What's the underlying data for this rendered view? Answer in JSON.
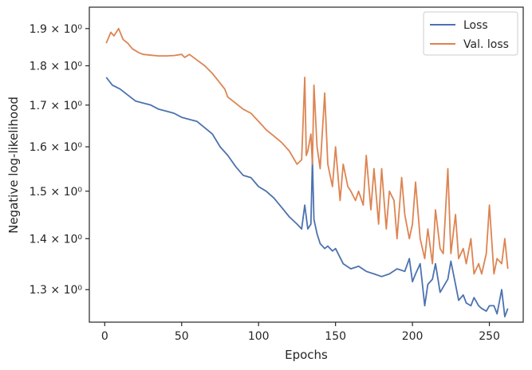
{
  "chart_data": {
    "type": "line",
    "xlabel": "Epochs",
    "ylabel": "Negative log-likelihood",
    "xlim": [
      -10,
      272
    ],
    "ylim": [
      1.24,
      1.96
    ],
    "yscale": "log",
    "xticks": [
      0,
      50,
      100,
      150,
      200,
      250
    ],
    "xtick_labels": [
      "0",
      "50",
      "100",
      "150",
      "200",
      "250"
    ],
    "yticks": [
      1.3,
      1.4,
      1.5,
      1.6,
      1.7,
      1.8,
      1.9
    ],
    "ytick_labels": [
      "1.3 × 10⁰",
      "1.4 × 10⁰",
      "1.5 × 10⁰",
      "1.6 × 10⁰",
      "1.7 × 10⁰",
      "1.8 × 10⁰",
      "1.9 × 10⁰"
    ],
    "grid": false,
    "legend_position": "top-right",
    "series": [
      {
        "name": "Loss",
        "color": "#4c72b0",
        "x": [
          1,
          5,
          10,
          15,
          20,
          25,
          30,
          35,
          40,
          45,
          50,
          55,
          60,
          65,
          70,
          75,
          80,
          85,
          90,
          95,
          100,
          105,
          110,
          115,
          120,
          125,
          128,
          130,
          132,
          134,
          135,
          136,
          138,
          140,
          143,
          145,
          148,
          150,
          155,
          160,
          165,
          170,
          175,
          180,
          185,
          190,
          195,
          198,
          200,
          202,
          205,
          208,
          210,
          213,
          215,
          218,
          220,
          223,
          225,
          228,
          230,
          233,
          235,
          238,
          240,
          243,
          245,
          248,
          250,
          253,
          255,
          258,
          260,
          262
        ],
        "y": [
          1.77,
          1.75,
          1.74,
          1.725,
          1.71,
          1.705,
          1.7,
          1.69,
          1.685,
          1.68,
          1.67,
          1.665,
          1.66,
          1.645,
          1.63,
          1.6,
          1.58,
          1.555,
          1.535,
          1.53,
          1.51,
          1.5,
          1.485,
          1.465,
          1.445,
          1.43,
          1.42,
          1.47,
          1.42,
          1.43,
          1.57,
          1.44,
          1.41,
          1.39,
          1.38,
          1.385,
          1.375,
          1.38,
          1.35,
          1.34,
          1.345,
          1.335,
          1.33,
          1.325,
          1.33,
          1.34,
          1.335,
          1.36,
          1.315,
          1.33,
          1.35,
          1.27,
          1.31,
          1.32,
          1.35,
          1.295,
          1.305,
          1.32,
          1.355,
          1.31,
          1.28,
          1.29,
          1.275,
          1.27,
          1.285,
          1.27,
          1.265,
          1.26,
          1.27,
          1.27,
          1.255,
          1.3,
          1.25,
          1.265
        ]
      },
      {
        "name": "Val. loss",
        "color": "#dd8452",
        "x": [
          1,
          4,
          6,
          9,
          12,
          15,
          18,
          22,
          25,
          30,
          35,
          40,
          45,
          50,
          52,
          55,
          60,
          65,
          70,
          75,
          78,
          80,
          85,
          90,
          95,
          100,
          105,
          110,
          115,
          120,
          125,
          128,
          130,
          131,
          132,
          134,
          135,
          136,
          138,
          140,
          143,
          145,
          148,
          150,
          153,
          155,
          158,
          160,
          163,
          165,
          168,
          170,
          173,
          175,
          178,
          180,
          183,
          185,
          188,
          190,
          193,
          195,
          198,
          200,
          202,
          205,
          208,
          210,
          213,
          215,
          218,
          220,
          223,
          225,
          228,
          230,
          233,
          235,
          238,
          240,
          243,
          245,
          248,
          250,
          253,
          255,
          258,
          260,
          262
        ],
        "y": [
          1.86,
          1.89,
          1.88,
          1.9,
          1.87,
          1.86,
          1.845,
          1.835,
          1.83,
          1.828,
          1.826,
          1.826,
          1.827,
          1.83,
          1.822,
          1.83,
          1.815,
          1.8,
          1.78,
          1.755,
          1.74,
          1.72,
          1.705,
          1.69,
          1.68,
          1.66,
          1.64,
          1.625,
          1.61,
          1.59,
          1.56,
          1.57,
          1.77,
          1.58,
          1.59,
          1.63,
          1.56,
          1.75,
          1.6,
          1.55,
          1.73,
          1.56,
          1.51,
          1.6,
          1.48,
          1.56,
          1.51,
          1.5,
          1.48,
          1.5,
          1.47,
          1.58,
          1.46,
          1.55,
          1.43,
          1.55,
          1.42,
          1.5,
          1.48,
          1.4,
          1.53,
          1.45,
          1.4,
          1.43,
          1.52,
          1.4,
          1.36,
          1.42,
          1.35,
          1.46,
          1.38,
          1.37,
          1.55,
          1.37,
          1.45,
          1.36,
          1.38,
          1.35,
          1.4,
          1.33,
          1.35,
          1.33,
          1.37,
          1.47,
          1.33,
          1.36,
          1.35,
          1.4,
          1.34
        ]
      }
    ]
  }
}
